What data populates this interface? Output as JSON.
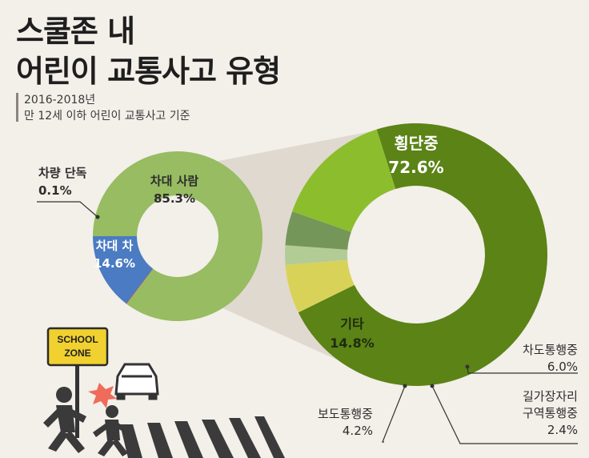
{
  "title_line1": "스쿨존 내",
  "title_line2": "어린이 교통사고 유형",
  "subtitle_line1": "2016-2018년",
  "subtitle_line2": "만 12세 이하 어린이 교통사고 기준",
  "illustration": {
    "sign_line1": "SCHOOL",
    "sign_line2": "ZONE"
  },
  "chart_data": [
    {
      "type": "pie",
      "variant": "donut",
      "start_angle": 180,
      "slices": [
        {
          "label": "차대 사람",
          "value": 85.3,
          "value_label": "85.3%",
          "color": "#97bc62"
        },
        {
          "label": "차량 단독",
          "value": 0.1,
          "value_label": "0.1%",
          "color": "#d44a4a"
        },
        {
          "label": "차대 차",
          "value": 14.6,
          "value_label": "14.6%",
          "color": "#4b7bc2"
        }
      ]
    },
    {
      "type": "pie",
      "variant": "donut",
      "detail_of": "차대 사람",
      "start_angle": 252.5,
      "slices": [
        {
          "label": "횡단중",
          "value": 72.6,
          "value_label": "72.6%",
          "color": "#5b8316"
        },
        {
          "label": "차도통행중",
          "value": 6.0,
          "value_label": "6.0%",
          "color": "#d9d258"
        },
        {
          "label": "길가장자리\n구역통행중",
          "value": 2.4,
          "value_label": "2.4%",
          "color": "#b3cc96"
        },
        {
          "label": "보도통행중",
          "value": 4.2,
          "value_label": "4.2%",
          "color": "#759659"
        },
        {
          "label": "기타",
          "value": 14.8,
          "value_label": "14.8%",
          "color": "#8cbd2d"
        }
      ]
    }
  ]
}
